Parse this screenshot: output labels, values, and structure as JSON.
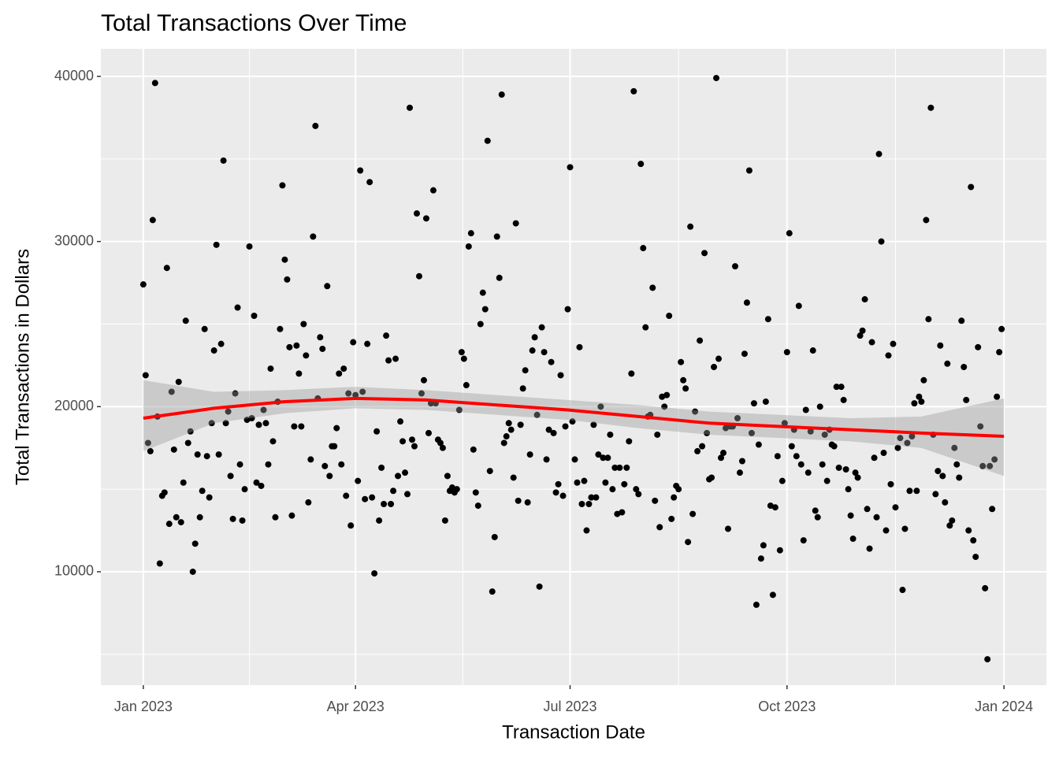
{
  "chart_data": {
    "type": "scatter",
    "title": "Total Transactions Over Time",
    "x_label": "Transaction Date",
    "y_label": "Total Transactions in Dollars",
    "x": [
      0,
      1,
      2,
      3,
      4,
      5,
      6,
      7,
      8,
      9,
      10,
      11,
      12,
      13,
      14,
      15,
      16,
      17,
      18,
      19,
      20,
      21,
      22,
      23,
      24,
      25,
      26,
      27,
      28,
      29,
      30,
      31,
      32,
      33,
      34,
      35,
      36,
      37,
      38,
      39,
      40,
      41,
      42,
      43,
      44,
      45,
      46,
      47,
      48,
      49,
      50,
      51,
      52,
      53,
      54,
      55,
      56,
      57,
      58,
      59,
      60,
      61,
      62,
      63,
      64,
      65,
      66,
      67,
      68,
      69,
      70,
      71,
      72,
      73,
      74,
      75,
      76,
      77,
      78,
      79,
      80,
      81,
      82,
      83,
      84,
      85,
      86,
      87,
      88,
      89,
      90,
      91,
      92,
      93,
      94,
      95,
      96,
      97,
      98,
      99,
      100,
      101,
      102,
      103,
      104,
      105,
      106,
      107,
      108,
      109,
      110,
      111,
      112,
      113,
      114,
      115,
      116,
      117,
      118,
      119,
      120,
      121,
      122,
      123,
      124,
      125,
      126,
      127,
      128,
      129,
      130,
      131,
      132,
      133,
      134,
      135,
      136,
      137,
      138,
      139,
      140,
      141,
      142,
      143,
      144,
      145,
      146,
      147,
      148,
      149,
      150,
      151,
      152,
      153,
      154,
      155,
      156,
      157,
      158,
      159,
      160,
      161,
      162,
      163,
      164,
      165,
      166,
      167,
      168,
      169,
      170,
      171,
      172,
      173,
      174,
      175,
      176,
      177,
      178,
      179,
      180,
      181,
      182,
      183,
      184,
      185,
      186,
      187,
      188,
      189,
      190,
      191,
      192,
      193,
      194,
      195,
      196,
      197,
      198,
      199,
      200,
      201,
      202,
      203,
      204,
      205,
      206,
      207,
      208,
      209,
      210,
      211,
      212,
      213,
      214,
      215,
      216,
      217,
      218,
      219,
      220,
      221,
      222,
      223,
      224,
      225,
      226,
      227,
      228,
      229,
      230,
      231,
      232,
      233,
      234,
      235,
      236,
      237,
      238,
      239,
      240,
      241,
      242,
      243,
      244,
      245,
      246,
      247,
      248,
      249,
      250,
      251,
      252,
      253,
      254,
      255,
      256,
      257,
      258,
      259,
      260,
      261,
      262,
      263,
      264,
      265,
      266,
      267,
      268,
      269,
      270,
      271,
      272,
      273,
      274,
      275,
      276,
      277,
      278,
      279,
      280,
      281,
      282,
      283,
      284,
      285,
      286,
      287,
      288,
      289,
      290,
      291,
      292,
      293,
      294,
      295,
      296,
      297,
      298,
      299,
      300,
      301,
      302,
      303,
      304,
      305,
      306,
      307,
      308,
      309,
      310,
      311,
      312,
      313,
      314,
      315,
      316,
      317,
      318,
      319,
      320,
      321,
      322,
      323,
      324,
      325,
      326,
      327,
      328,
      329,
      330,
      331,
      332,
      333,
      334,
      335,
      336,
      337,
      338,
      339,
      340,
      341,
      342,
      343,
      344,
      345,
      346,
      347,
      348,
      349,
      350,
      351,
      352,
      353,
      354,
      355,
      356,
      357,
      358,
      359,
      360,
      361,
      362,
      363,
      364
    ],
    "values": [
      27400,
      21900,
      17800,
      17300,
      31300,
      39600,
      19400,
      10500,
      14600,
      14800,
      28400,
      12900,
      20900,
      17400,
      13300,
      21500,
      13000,
      15400,
      25200,
      17800,
      18500,
      10000,
      11700,
      17100,
      13300,
      14900,
      24700,
      17000,
      14500,
      19000,
      23400,
      29800,
      17100,
      23800,
      34900,
      19000,
      19700,
      15800,
      13200,
      20800,
      26000,
      16500,
      13100,
      15000,
      19200,
      29700,
      19300,
      25500,
      15400,
      18900,
      15200,
      19800,
      19000,
      16500,
      22300,
      17900,
      13300,
      20300,
      24700,
      33400,
      28900,
      27700,
      23600,
      13400,
      18800,
      23700,
      22000,
      18800,
      25000,
      23100,
      14200,
      16800,
      30300,
      37000,
      20500,
      24200,
      23500,
      16400,
      27300,
      15800,
      17600,
      17600,
      18700,
      22000,
      16500,
      22300,
      14600,
      20800,
      12800,
      23900,
      20700,
      15500,
      34300,
      20900,
      14400,
      23800,
      33600,
      14500,
      9900,
      18500,
      13100,
      16300,
      14100,
      24300,
      22800,
      14100,
      14900,
      22900,
      15800,
      19100,
      17900,
      16000,
      14700,
      38100,
      18000,
      17600,
      31700,
      27900,
      20800,
      21600,
      31400,
      18400,
      20200,
      33100,
      20200,
      18000,
      17800,
      17500,
      13100,
      15800,
      14900,
      15100,
      14800,
      15000,
      19800,
      23300,
      22900,
      21300,
      29700,
      30500,
      17400,
      14800,
      14000,
      25000,
      26900,
      25900,
      36100,
      16100,
      8800,
      12100,
      30300,
      27800,
      38900,
      17800,
      18200,
      19000,
      18600,
      15700,
      31100,
      14300,
      18900,
      21100,
      22200,
      14200,
      17100,
      23400,
      24200,
      19500,
      9100,
      24800,
      23300,
      16800,
      18600,
      22700,
      18400,
      14800,
      15300,
      21900,
      14600,
      18800,
      25900,
      34500,
      19100,
      16800,
      15400,
      23600,
      14100,
      15500,
      12500,
      14100,
      14500,
      18900,
      14500,
      17100,
      20000,
      16900,
      15400,
      16900,
      18300,
      15000,
      16300,
      13500,
      16300,
      13600,
      15300,
      16300,
      17900,
      22000,
      39100,
      15000,
      14700,
      34700,
      29600,
      24800,
      19400,
      19500,
      27200,
      14300,
      18300,
      12700,
      20600,
      20000,
      20700,
      25500,
      13200,
      14500,
      15200,
      15000,
      22700,
      21600,
      21100,
      11800,
      30900,
      13500,
      19700,
      17300,
      24000,
      17600,
      29300,
      18400,
      15600,
      15700,
      22400,
      39900,
      22900,
      16900,
      17200,
      18700,
      12600,
      18800,
      18800,
      28500,
      19300,
      16000,
      16700,
      23200,
      26300,
      34300,
      18400,
      20200,
      8000,
      17700,
      10800,
      11600,
      20300,
      25300,
      14000,
      8600,
      13900,
      17000,
      11300,
      15500,
      19000,
      23300,
      30500,
      17600,
      18600,
      17000,
      26100,
      16500,
      11900,
      19800,
      16000,
      18500,
      23400,
      13700,
      13300,
      20000,
      16500,
      18300,
      15500,
      18600,
      17700,
      17600,
      21200,
      16300,
      21200,
      20400,
      16200,
      15000,
      13400,
      12000,
      16000,
      15700,
      24300,
      24600,
      26500,
      13800,
      11400,
      23900,
      16900,
      13300,
      35300,
      30000,
      17200,
      12500,
      23100,
      15300,
      23800,
      13900,
      17500,
      18100,
      8900,
      12600,
      17800,
      14900,
      18200,
      20200,
      14900,
      20600,
      20300,
      21600,
      31300,
      25300,
      38100,
      18300,
      14700,
      16100,
      23700,
      15800,
      14200,
      22600,
      12800,
      13100,
      17500,
      16500,
      15700,
      25200,
      22400,
      20400,
      12500,
      33300,
      11900,
      10900,
      23600,
      18800,
      16400,
      9000,
      4700,
      16400,
      13800,
      16800,
      20600,
      23300,
      24700
    ],
    "color": "#000000",
    "smooth": {
      "x": [
        0,
        30,
        60,
        90,
        120,
        150,
        180,
        210,
        240,
        270,
        300,
        330,
        365
      ],
      "values": [
        19300,
        19900,
        20300,
        20500,
        20400,
        20100,
        19800,
        19400,
        19000,
        18800,
        18600,
        18400,
        18200
      ],
      "lower": [
        17300,
        19000,
        19600,
        19900,
        19800,
        19500,
        19200,
        18700,
        18300,
        18100,
        17900,
        17500,
        15800
      ],
      "upper": [
        21600,
        20900,
        21000,
        21200,
        21000,
        20700,
        20400,
        20100,
        19700,
        19500,
        19300,
        19400,
        20500
      ],
      "color": "#FF0000",
      "band_color": "#999999"
    },
    "xlim": [
      -18,
      383
    ],
    "ylim": [
      3130,
      41670
    ],
    "xticks": [
      {
        "value": 0,
        "label": "Jan 2023"
      },
      {
        "value": 90,
        "label": "Apr 2023"
      },
      {
        "value": 181,
        "label": "Jul 2023"
      },
      {
        "value": 273,
        "label": "Oct 2023"
      },
      {
        "value": 365,
        "label": "Jan 2024"
      }
    ],
    "yticks": [
      10000,
      20000,
      30000,
      40000
    ],
    "grid": true
  }
}
